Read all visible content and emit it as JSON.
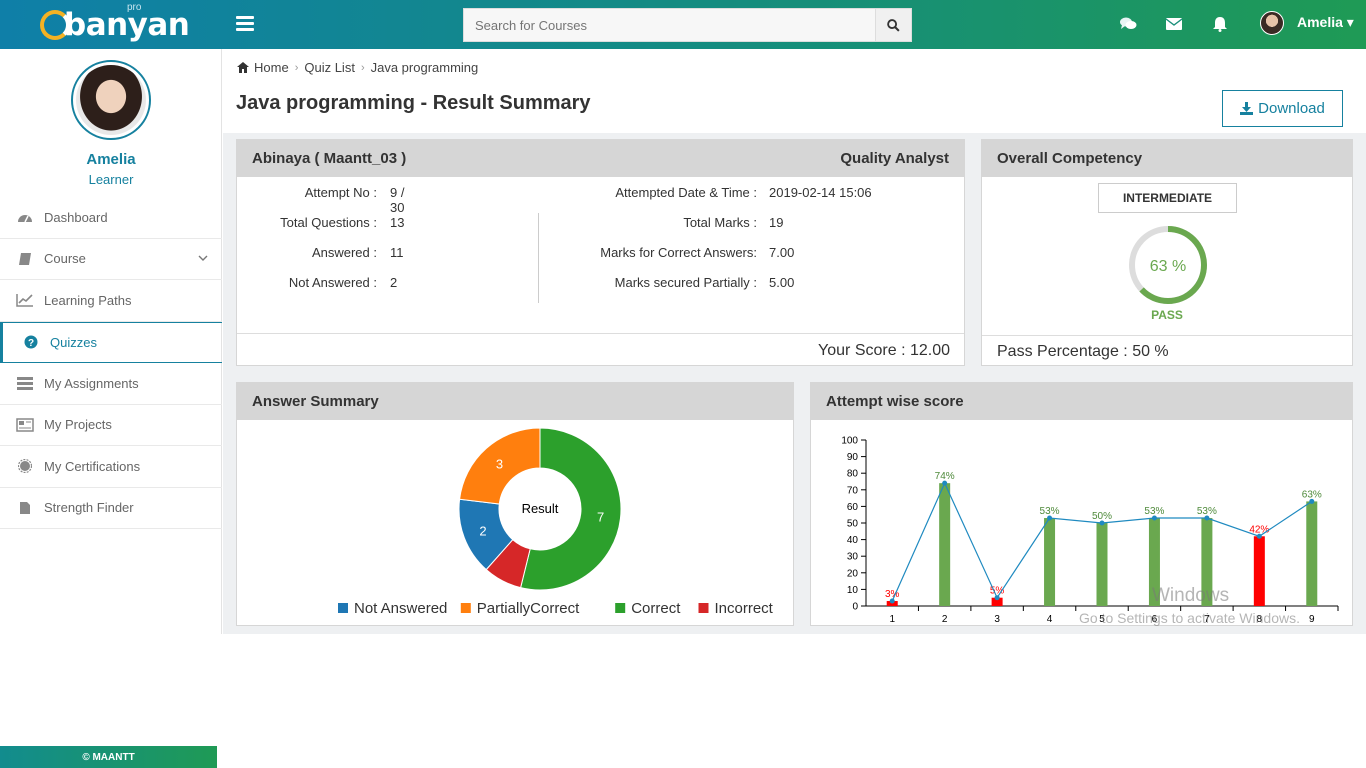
{
  "app": {
    "logo_text": "banyan",
    "logo_sup": "pro"
  },
  "header": {
    "search_placeholder": "Search for Courses",
    "user_name": "Amelia ▾"
  },
  "profile": {
    "name": "Amelia",
    "role": "Learner"
  },
  "sidebar": {
    "items": [
      {
        "label": "Dashboard",
        "icon": "dashboard-icon"
      },
      {
        "label": "Course",
        "icon": "book-icon"
      },
      {
        "label": "Learning Paths",
        "icon": "chart-line-icon"
      },
      {
        "label": "Quizzes",
        "icon": "question-circle-icon"
      },
      {
        "label": "My Assignments",
        "icon": "list-icon"
      },
      {
        "label": "My Projects",
        "icon": "newspaper-icon"
      },
      {
        "label": "My Certifications",
        "icon": "certificate-icon"
      },
      {
        "label": "Strength Finder",
        "icon": "file-icon"
      }
    ],
    "footer": "© MAANTT"
  },
  "breadcrumb": {
    "home": "Home",
    "quiz_list": "Quiz List",
    "current": "Java programming"
  },
  "page": {
    "title": "Java programming - Result Summary",
    "download_label": "Download"
  },
  "result": {
    "candidate": "Abinaya ( Maantt_03 )",
    "role": "Quality Analyst",
    "attempt_no_label": "Attempt No :",
    "attempt_no": "9 / 30",
    "total_questions_label": "Total Questions :",
    "total_questions": "13",
    "answered_label": "Answered :",
    "answered": "11",
    "not_answered_label": "Not Answered :",
    "not_answered": "2",
    "attempted_date_label": "Attempted Date & Time :",
    "attempted_date": "2019-02-14 15:06",
    "total_marks_label": "Total Marks :",
    "total_marks": "19",
    "marks_correct_label": "Marks for Correct Answers:",
    "marks_correct": "7.00",
    "marks_partial_label": "Marks secured Partially :",
    "marks_partial": "5.00",
    "your_score": "Your Score :  12.00"
  },
  "competency": {
    "title": "Overall Competency",
    "level": "INTERMEDIATE",
    "percent": 63,
    "percent_label": "63 %",
    "status": "PASS",
    "pass_percentage": "Pass Percentage :    50 %",
    "colors": {
      "ring": "#6aa84f",
      "track": "#dddddd"
    }
  },
  "answer_summary": {
    "title": "Answer Summary",
    "center_label": "Result",
    "chart_data": {
      "type": "pie",
      "categories": [
        "Not Answered",
        "PartiallyCorrect",
        "Correct",
        "Incorrect"
      ],
      "values": [
        2,
        3,
        7,
        1
      ],
      "colors": [
        "#1f77b4",
        "#ff7f0e",
        "#2ca02c",
        "#d62728"
      ],
      "value_labels": [
        "2",
        "3",
        "7",
        ""
      ],
      "legend": "bottom"
    }
  },
  "attempt_score": {
    "title": "Attempt wise score",
    "chart_data": {
      "type": "bar",
      "categories": [
        "1",
        "2",
        "3",
        "4",
        "5",
        "6",
        "7",
        "8",
        "9"
      ],
      "values": [
        3,
        74,
        5,
        53,
        50,
        53,
        53,
        42,
        63
      ],
      "labels": [
        "3%",
        "74%",
        "5%",
        "53%",
        "50%",
        "53%",
        "53%",
        "42%",
        "63%"
      ],
      "bar_colors": [
        "#ff0000",
        "#6aa84f",
        "#ff0000",
        "#6aa84f",
        "#6aa84f",
        "#6aa84f",
        "#6aa84f",
        "#ff0000",
        "#6aa84f"
      ],
      "line_color": "#1f8ac0",
      "ylim": [
        0,
        100
      ],
      "yticks": [
        "0",
        "10",
        "20",
        "30",
        "40",
        "50",
        "60",
        "70",
        "80",
        "90",
        "100"
      ],
      "grid": false
    }
  },
  "watermark": {
    "line1": "Windows",
    "line2": "Go to Settings to activate Windows."
  }
}
